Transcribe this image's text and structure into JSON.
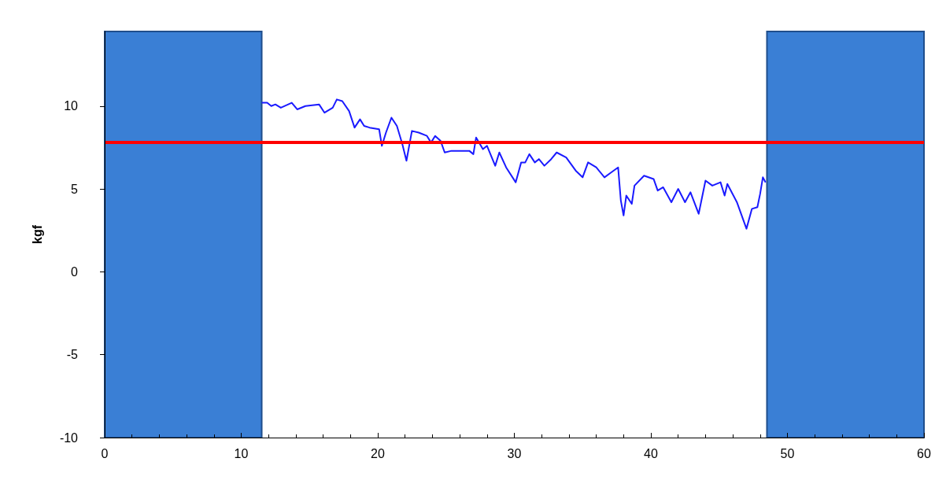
{
  "chart_data": {
    "type": "line",
    "ylabel": "kgf",
    "xlim": [
      0,
      60
    ],
    "xticks": [
      0,
      10,
      20,
      30,
      40,
      50,
      60
    ],
    "ylim": [
      -10,
      14.5
    ],
    "yticks": [
      -10,
      -5,
      0,
      5,
      10
    ],
    "grid": false,
    "marker": "none",
    "line_style": "solid",
    "series": [
      {
        "color": "#1a1aff",
        "x": [
          11.5,
          11.9,
          12.2,
          12.5,
          12.9,
          13.7,
          14.1,
          14.7,
          15.7,
          16.1,
          16.7,
          17.0,
          17.4,
          17.9,
          18.3,
          18.7,
          19.0,
          19.4,
          20.1,
          20.3,
          20.6,
          21.0,
          21.4,
          21.8,
          22.1,
          22.5,
          23.0,
          23.6,
          23.9,
          24.2,
          24.6,
          24.9,
          25.4,
          25.6,
          26.7,
          27.0,
          27.2,
          27.7,
          28.0,
          28.6,
          28.9,
          29.4,
          30.1,
          30.5,
          30.8,
          31.1,
          31.5,
          31.8,
          32.2,
          32.7,
          33.1,
          33.8,
          34.5,
          35.0,
          35.4,
          36.0,
          36.6,
          37.1,
          37.6,
          37.8,
          38.0,
          38.2,
          38.6,
          38.8,
          39.5,
          40.2,
          40.5,
          40.9,
          41.5,
          42.0,
          42.5,
          42.9,
          43.5,
          44.0,
          44.5,
          45.1,
          45.4,
          45.6,
          46.3,
          47.0,
          47.4,
          47.8,
          48.0,
          48.2,
          48.4
        ],
        "values": [
          10.2,
          10.2,
          10.0,
          10.1,
          9.9,
          10.2,
          9.8,
          10.0,
          10.1,
          9.6,
          9.9,
          10.4,
          10.3,
          9.7,
          8.7,
          9.2,
          8.8,
          8.7,
          8.6,
          7.6,
          8.4,
          9.3,
          8.8,
          7.7,
          6.7,
          8.5,
          8.4,
          8.2,
          7.8,
          8.2,
          7.9,
          7.2,
          7.3,
          7.3,
          7.3,
          7.1,
          8.1,
          7.4,
          7.6,
          6.4,
          7.2,
          6.3,
          5.4,
          6.6,
          6.6,
          7.1,
          6.6,
          6.8,
          6.4,
          6.8,
          7.2,
          6.9,
          6.1,
          5.7,
          6.6,
          6.3,
          5.7,
          6.0,
          6.3,
          4.3,
          3.4,
          4.6,
          4.1,
          5.2,
          5.8,
          5.6,
          4.9,
          5.1,
          4.2,
          5.0,
          4.2,
          4.8,
          3.5,
          5.5,
          5.2,
          5.4,
          4.6,
          5.3,
          4.2,
          2.6,
          3.8,
          3.9,
          4.7,
          5.7,
          5.4
        ]
      }
    ],
    "ref_lines": [
      {
        "axis": "y",
        "value": 7.8,
        "color": "#ff0000",
        "line_style": "solid"
      }
    ],
    "bands": [
      {
        "axis": "x",
        "from": 0,
        "to": 11.5,
        "color": "#3a7fd5"
      },
      {
        "axis": "x",
        "from": 48.5,
        "to": 60,
        "color": "#3a7fd5"
      }
    ]
  }
}
